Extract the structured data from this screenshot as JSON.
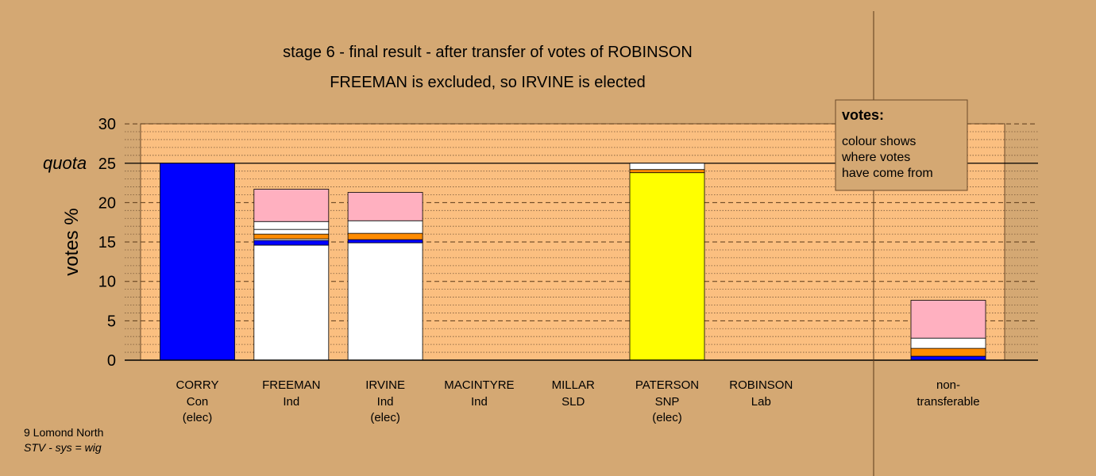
{
  "chart_data": {
    "type": "bar",
    "stacked": true,
    "title": "stage 6 - final result - after transfer of votes of ROBINSON",
    "subtitle": "FREEMAN is excluded, so IRVINE is elected",
    "ylabel": "votes %",
    "ylim": [
      0,
      30
    ],
    "yticks": [
      "0",
      "5",
      "10",
      "15",
      "20",
      "25",
      "30"
    ],
    "quota": 25,
    "quota_label": "quota",
    "grid": true,
    "candidates": [
      {
        "name": "CORRY",
        "party": "Con",
        "status": "(elec)",
        "segments": [
          {
            "color": "#0000ff",
            "value": 25
          }
        ]
      },
      {
        "name": "FREEMAN",
        "party": "Ind",
        "status": "",
        "segments": [
          {
            "color": "#ffffff",
            "value": 14.6
          },
          {
            "color": "#0000ff",
            "value": 0.6
          },
          {
            "color": "#ffffff",
            "value": 0.2
          },
          {
            "color": "#ff8c00",
            "value": 0.6
          },
          {
            "color": "#ffffff",
            "value": 0.6
          },
          {
            "color": "#ffffff",
            "value": 1.0
          },
          {
            "color": "#ffb0c0",
            "value": 4.1
          }
        ]
      },
      {
        "name": "IRVINE",
        "party": "Ind",
        "status": "(elec)",
        "segments": [
          {
            "color": "#ffffff",
            "value": 14.9
          },
          {
            "color": "#0000ff",
            "value": 0.4
          },
          {
            "color": "#ff8c00",
            "value": 0.8
          },
          {
            "color": "#ffffff",
            "value": 1.6
          },
          {
            "color": "#ffb0c0",
            "value": 3.6
          }
        ]
      },
      {
        "name": "MACINTYRE",
        "party": "Ind",
        "status": "",
        "segments": []
      },
      {
        "name": "MILLAR",
        "party": "SLD",
        "status": "",
        "segments": []
      },
      {
        "name": "PATERSON",
        "party": "SNP",
        "status": "(elec)",
        "segments": [
          {
            "color": "#ffff00",
            "value": 23.8
          },
          {
            "color": "#ff8c00",
            "value": 0.4
          },
          {
            "color": "#ffffff",
            "value": 0.8
          }
        ]
      },
      {
        "name": "ROBINSON",
        "party": "Lab",
        "status": "",
        "segments": []
      }
    ],
    "nontransferable": {
      "label_line1": "non-",
      "label_line2": "transferable",
      "segments": [
        {
          "color": "#0000ff",
          "value": 0.5
        },
        {
          "color": "#ff8c00",
          "value": 1.0
        },
        {
          "color": "#ffffff",
          "value": 1.3
        },
        {
          "color": "#ffb0c0",
          "value": 4.8
        }
      ]
    },
    "legend": {
      "title": "votes:",
      "lines": [
        "colour shows",
        "where votes",
        "have come from"
      ]
    }
  },
  "footer": {
    "line1": "9 Lomond North",
    "line2": "STV - sys = wig"
  },
  "colors": {
    "background": "#d4a873",
    "plot_fill": "#fbbf80"
  }
}
